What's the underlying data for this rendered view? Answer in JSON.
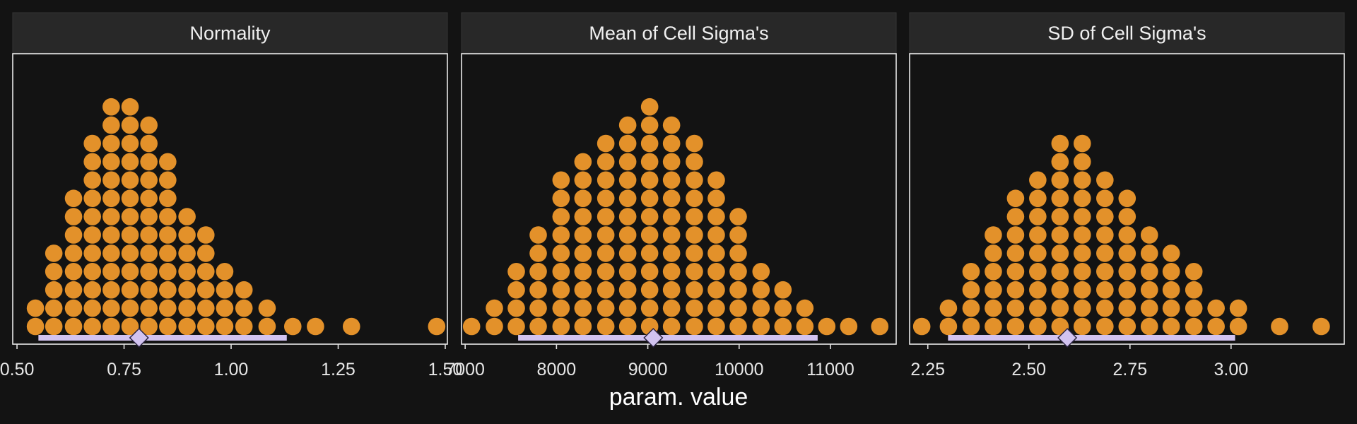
{
  "chart_data": {
    "type": "dotplot",
    "xlabel": "param. value",
    "colors": {
      "background": "#131313",
      "strip": "#282828",
      "border": "#e8e8e8",
      "dot": "#e3912a",
      "interval": "#d2c3f0"
    },
    "panels": [
      {
        "title": "Normality",
        "xlim": [
          0.49,
          1.505
        ],
        "ticks": [
          0.5,
          0.75,
          1.0,
          1.25,
          1.5
        ],
        "tick_labels": [
          "0.50",
          "0.75",
          "1.00",
          "1.25",
          "1.50"
        ],
        "bins": [
          {
            "x": 0.543,
            "count": 2
          },
          {
            "x": 0.586,
            "count": 5
          },
          {
            "x": 0.632,
            "count": 8
          },
          {
            "x": 0.676,
            "count": 11
          },
          {
            "x": 0.72,
            "count": 13
          },
          {
            "x": 0.764,
            "count": 13
          },
          {
            "x": 0.808,
            "count": 12
          },
          {
            "x": 0.852,
            "count": 10
          },
          {
            "x": 0.897,
            "count": 7
          },
          {
            "x": 0.941,
            "count": 6
          },
          {
            "x": 0.985,
            "count": 4
          },
          {
            "x": 1.03,
            "count": 3
          },
          {
            "x": 1.084,
            "count": 2
          },
          {
            "x": 1.144,
            "count": 1
          },
          {
            "x": 1.197,
            "count": 1
          },
          {
            "x": 1.281,
            "count": 1
          },
          {
            "x": 1.48,
            "count": 1
          }
        ],
        "interval": [
          0.55,
          1.13
        ],
        "point": 0.785
      },
      {
        "title": "Mean of Cell Sigma's",
        "xlim": [
          6960,
          11720
        ],
        "ticks": [
          7000,
          8000,
          9000,
          10000,
          11000
        ],
        "tick_labels": [
          "7000",
          "8000",
          "9000",
          "10000",
          "11000"
        ],
        "bins": [
          {
            "x": 7070,
            "count": 1
          },
          {
            "x": 7320,
            "count": 2
          },
          {
            "x": 7560,
            "count": 4
          },
          {
            "x": 7800,
            "count": 6
          },
          {
            "x": 8050,
            "count": 9
          },
          {
            "x": 8290,
            "count": 10
          },
          {
            "x": 8540,
            "count": 11
          },
          {
            "x": 8780,
            "count": 12
          },
          {
            "x": 9020,
            "count": 13
          },
          {
            "x": 9260,
            "count": 12
          },
          {
            "x": 9510,
            "count": 11
          },
          {
            "x": 9750,
            "count": 9
          },
          {
            "x": 9990,
            "count": 7
          },
          {
            "x": 10240,
            "count": 4
          },
          {
            "x": 10480,
            "count": 3
          },
          {
            "x": 10720,
            "count": 2
          },
          {
            "x": 10960,
            "count": 1
          },
          {
            "x": 11200,
            "count": 1
          },
          {
            "x": 11540,
            "count": 1
          }
        ],
        "interval": [
          7580,
          10860
        ],
        "point": 9060
      },
      {
        "title": "SD of Cell Sigma's",
        "xlim": [
          2.205,
          3.28
        ],
        "ticks": [
          2.25,
          2.5,
          2.75,
          3.0
        ],
        "tick_labels": [
          "2.25",
          "2.50",
          "2.75",
          "3.00"
        ],
        "bins": [
          {
            "x": 2.235,
            "count": 1
          },
          {
            "x": 2.301,
            "count": 2
          },
          {
            "x": 2.357,
            "count": 4
          },
          {
            "x": 2.412,
            "count": 6
          },
          {
            "x": 2.467,
            "count": 8
          },
          {
            "x": 2.522,
            "count": 9
          },
          {
            "x": 2.577,
            "count": 11
          },
          {
            "x": 2.632,
            "count": 11
          },
          {
            "x": 2.688,
            "count": 9
          },
          {
            "x": 2.743,
            "count": 8
          },
          {
            "x": 2.798,
            "count": 6
          },
          {
            "x": 2.852,
            "count": 5
          },
          {
            "x": 2.908,
            "count": 4
          },
          {
            "x": 2.963,
            "count": 2
          },
          {
            "x": 3.018,
            "count": 2
          },
          {
            "x": 3.12,
            "count": 1
          },
          {
            "x": 3.223,
            "count": 1
          }
        ],
        "interval": [
          2.3,
          3.01
        ],
        "point": 2.595
      }
    ]
  }
}
